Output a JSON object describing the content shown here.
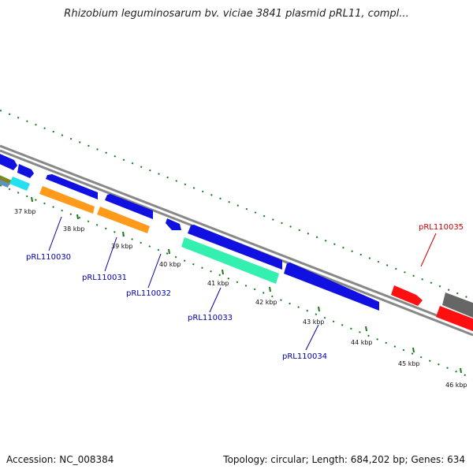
{
  "title": "Rhizobium leguminosarum bv. viciae 3841 plasmid pRL11, compl...",
  "footer": {
    "accession": "Accession: NC_008384",
    "topology": "Topology: circular; Length: 684,202 bp; Genes: 634"
  },
  "colors": {
    "backbone": "#888888",
    "ticks": "#1a7a1a",
    "blue": "#1010e0",
    "orange": "#ff9a1a",
    "teal": "#33f0b0",
    "cyan": "#22e0f0",
    "red": "#ff1010",
    "gray": "#666666",
    "olive": "#7a8a20",
    "steel": "#6090c0",
    "label_blue": "#0000aa",
    "label_red": "#cc0000"
  },
  "kbp_labels": [
    "37 kbp",
    "38 kbp",
    "39 kbp",
    "40 kbp",
    "41 kbp",
    "42 kbp",
    "43 kbp",
    "44 kbp",
    "45 kbp",
    "46 kbp"
  ],
  "gene_labels": [
    {
      "text": "pRL110030",
      "color": "label_blue"
    },
    {
      "text": "pRL110031",
      "color": "label_blue"
    },
    {
      "text": "pRL110032",
      "color": "label_blue"
    },
    {
      "text": "pRL110033",
      "color": "label_blue"
    },
    {
      "text": "pRL110034",
      "color": "label_blue"
    },
    {
      "text": "pRL110035",
      "color": "label_red"
    }
  ]
}
